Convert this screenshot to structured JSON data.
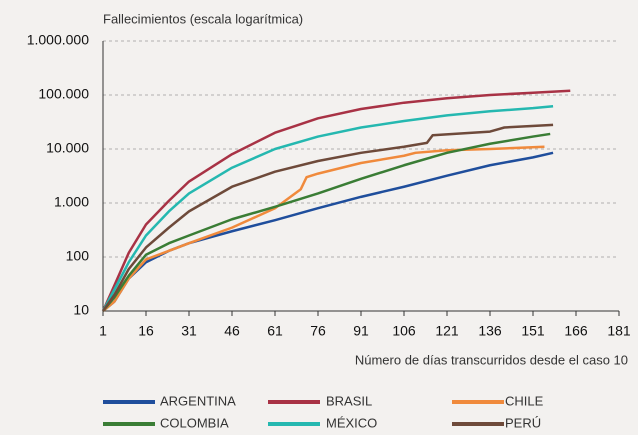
{
  "chart_data": {
    "type": "line",
    "y_axis_label": "Fallecimientos (escala logarítmica)",
    "x_axis_label": "Número de días transcurridos desde el caso 10",
    "log_y": true,
    "grid": true,
    "xlim": [
      1,
      181
    ],
    "xticks": [
      1,
      16,
      31,
      46,
      61,
      76,
      91,
      106,
      121,
      136,
      151,
      166,
      181
    ],
    "ylim": [
      10,
      1000000
    ],
    "yticks": [
      10,
      100,
      {
        "value": 1000,
        "label": "1.000"
      },
      {
        "value": 10000,
        "label": "10.000"
      },
      {
        "value": 100000,
        "label": "100.000"
      },
      {
        "value": 1000000,
        "label": "1.000.000"
      }
    ],
    "series": [
      {
        "name": "ARGENTINA",
        "color": "#1f4e9c",
        "x": [
          1,
          5,
          10,
          16,
          24,
          31,
          46,
          61,
          76,
          91,
          106,
          121,
          136,
          151,
          158
        ],
        "values": [
          10,
          15,
          40,
          80,
          130,
          180,
          300,
          480,
          800,
          1300,
          2000,
          3200,
          5000,
          7000,
          8500
        ]
      },
      {
        "name": "BRASIL",
        "color": "#a83245",
        "x": [
          1,
          5,
          10,
          16,
          24,
          31,
          46,
          61,
          76,
          91,
          106,
          121,
          136,
          151,
          164
        ],
        "values": [
          10,
          30,
          120,
          400,
          1100,
          2500,
          8000,
          20000,
          37000,
          55000,
          72000,
          87000,
          100000,
          110000,
          120000
        ]
      },
      {
        "name": "CHILE",
        "color": "#f08a3c",
        "x": [
          1,
          5,
          10,
          16,
          24,
          31,
          46,
          61,
          70,
          72,
          76,
          91,
          106,
          110,
          121,
          136,
          155
        ],
        "values": [
          10,
          15,
          40,
          90,
          130,
          180,
          350,
          800,
          1800,
          3000,
          3500,
          5500,
          7500,
          8500,
          9500,
          10000,
          11000
        ]
      },
      {
        "name": "COLOMBIA",
        "color": "#3a7d35",
        "x": [
          1,
          5,
          10,
          16,
          24,
          31,
          46,
          61,
          76,
          91,
          106,
          121,
          136,
          151,
          157
        ],
        "values": [
          10,
          18,
          45,
          110,
          180,
          250,
          500,
          850,
          1500,
          2800,
          5000,
          8500,
          12500,
          17000,
          19000
        ]
      },
      {
        "name": "MÉXICO",
        "color": "#25b8b0",
        "x": [
          1,
          5,
          10,
          16,
          24,
          31,
          46,
          61,
          76,
          91,
          106,
          121,
          136,
          151,
          158
        ],
        "values": [
          10,
          25,
          80,
          250,
          700,
          1500,
          4500,
          10000,
          17000,
          25000,
          33000,
          42000,
          50000,
          57000,
          62000
        ]
      },
      {
        "name": "PERÚ",
        "color": "#6e4a3a",
        "x": [
          1,
          5,
          10,
          16,
          24,
          31,
          46,
          61,
          76,
          91,
          106,
          114,
          116,
          136,
          141,
          158
        ],
        "values": [
          10,
          20,
          60,
          150,
          350,
          700,
          2000,
          3800,
          6000,
          8500,
          11000,
          13000,
          18000,
          21000,
          25000,
          28000
        ]
      }
    ]
  }
}
